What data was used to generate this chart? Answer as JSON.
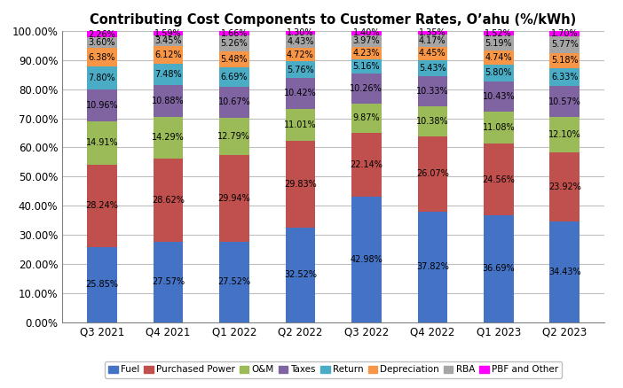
{
  "title": "Contributing Cost Components to Customer Rates, O’ahu (%/kWh)",
  "categories": [
    "Q3 2021",
    "Q4 2021",
    "Q1 2022",
    "Q2 2022",
    "Q3 2022",
    "Q4 2022",
    "Q1 2023",
    "Q2 2023"
  ],
  "series": {
    "Fuel": [
      25.85,
      27.57,
      27.52,
      32.52,
      42.98,
      37.82,
      36.69,
      34.43
    ],
    "Purchased Power": [
      28.24,
      28.62,
      29.94,
      29.83,
      22.14,
      26.07,
      24.56,
      23.92
    ],
    "O&M": [
      14.91,
      14.29,
      12.79,
      11.01,
      9.87,
      10.38,
      11.08,
      12.1
    ],
    "Taxes": [
      10.96,
      10.88,
      10.67,
      10.42,
      10.26,
      10.33,
      10.43,
      10.57
    ],
    "Return": [
      7.8,
      7.48,
      6.69,
      5.76,
      5.16,
      5.43,
      5.8,
      6.33
    ],
    "Depreciation": [
      6.38,
      6.12,
      5.48,
      4.72,
      4.23,
      4.45,
      4.74,
      5.18
    ],
    "RBA": [
      3.6,
      3.45,
      5.26,
      4.43,
      3.97,
      4.17,
      5.19,
      5.77
    ],
    "PBF and Other": [
      2.26,
      1.59,
      1.66,
      1.3,
      1.4,
      1.35,
      1.52,
      1.7
    ]
  },
  "colors": {
    "Fuel": "#4472C4",
    "Purchased Power": "#C0504D",
    "O&M": "#9BBB59",
    "Taxes": "#8064A2",
    "Return": "#4BACC6",
    "Depreciation": "#F79646",
    "RBA": "#A5A5A5",
    "PBF and Other": "#FF00FF"
  },
  "ylim": [
    0,
    100
  ],
  "ytick_labels": [
    "0.00%",
    "10.00%",
    "20.00%",
    "30.00%",
    "40.00%",
    "50.00%",
    "60.00%",
    "70.00%",
    "80.00%",
    "90.00%",
    "100.00%"
  ],
  "background_color": "#FFFFFF",
  "grid_color": "#BEBEBE",
  "title_fontsize": 10.5,
  "label_fontsize": 7.0,
  "legend_fontsize": 7.5,
  "bar_width": 0.45
}
